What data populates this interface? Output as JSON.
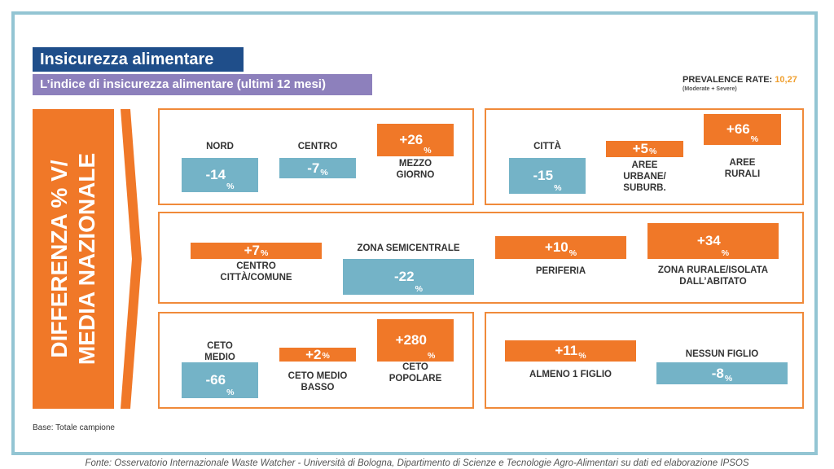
{
  "header": {
    "title": "Insicurezza alimentare",
    "subtitle": "L’indice di insicurezza alimentare (ultimi 12 mesi)",
    "prevalence_label": "PREVALENCE RATE:",
    "prevalence_value": "10,27",
    "prevalence_note": "(Moderate + Severe)"
  },
  "side_label_line1": "DIFFERENZA % V/",
  "side_label_line2": "MEDIA NAZIONALE",
  "chart_data": {
    "type": "bar",
    "unit": "%",
    "groups": [
      {
        "categories": [
          "NORD",
          "CENTRO",
          "MEZZO GIORNO"
        ],
        "values": [
          -14,
          -7,
          26
        ]
      },
      {
        "categories": [
          "CITTÀ",
          "AREE URBANE/ SUBURB.",
          "AREE RURALI"
        ],
        "values": [
          -15,
          5,
          66
        ]
      },
      {
        "categories": [
          "CENTRO CITTÀ/COMUNE",
          "ZONA SEMICENTRALE",
          "PERIFERIA",
          "ZONA RURALE/ISOLATA DALL’ABITATO"
        ],
        "values": [
          7,
          -22,
          10,
          34
        ]
      },
      {
        "categories": [
          "CETO MEDIO",
          "CETO MEDIO BASSO",
          "CETO POPOLARE"
        ],
        "values": [
          -66,
          2,
          280
        ]
      },
      {
        "categories": [
          "ALMENO 1 FIGLIO",
          "NESSUN FIGLIO"
        ],
        "values": [
          11,
          -8
        ]
      }
    ]
  },
  "labels": {
    "nord": "NORD",
    "centro": "CENTRO",
    "mezzo1": "MEZZO",
    "mezzo2": "GIORNO",
    "citta": "CITTÀ",
    "aree1": "AREE",
    "aree2": "URBANE/",
    "aree3": "SUBURB.",
    "rur1": "AREE",
    "rur2": "RURALI",
    "cc1": "CENTRO",
    "cc2": "CITTÀ/COMUNE",
    "semi": "ZONA SEMICENTRALE",
    "peri": "PERIFERIA",
    "zr1": "ZONA RURALE/ISOLATA",
    "zr2": "DALL’ABITATO",
    "cm1": "CETO",
    "cm2": "MEDIO",
    "cmb1": "CETO MEDIO",
    "cmb2": "BASSO",
    "cp1": "CETO",
    "cp2": "POPOLARE",
    "alm": "ALMENO 1 FIGLIO",
    "nes": "NESSUN FIGLIO"
  },
  "values_text": {
    "nord": "-14",
    "centro": "-7",
    "mezzo": "+26",
    "citta": "-15",
    "aree": "+5",
    "rurali": "+66",
    "cc": "+7",
    "semi": "-22",
    "peri": "+10",
    "zr": "+34",
    "cm": "-66",
    "cmb": "+2",
    "cp": "+280",
    "alm": "+11",
    "nes": "-8",
    "pct": "%"
  },
  "colors": {
    "negative": "#74b3c7",
    "positive": "#f07828",
    "frame": "#93c5d3",
    "title": "#1f4e8a",
    "subtitle": "#8d80bc"
  },
  "base_note": "Base: Totale campione",
  "source": "Fonte: Osservatorio Internazionale Waste Watcher - Università di Bologna, Dipartimento di Scienze e Tecnologie Agro-Alimentari su dati ed elaborazione IPSOS"
}
